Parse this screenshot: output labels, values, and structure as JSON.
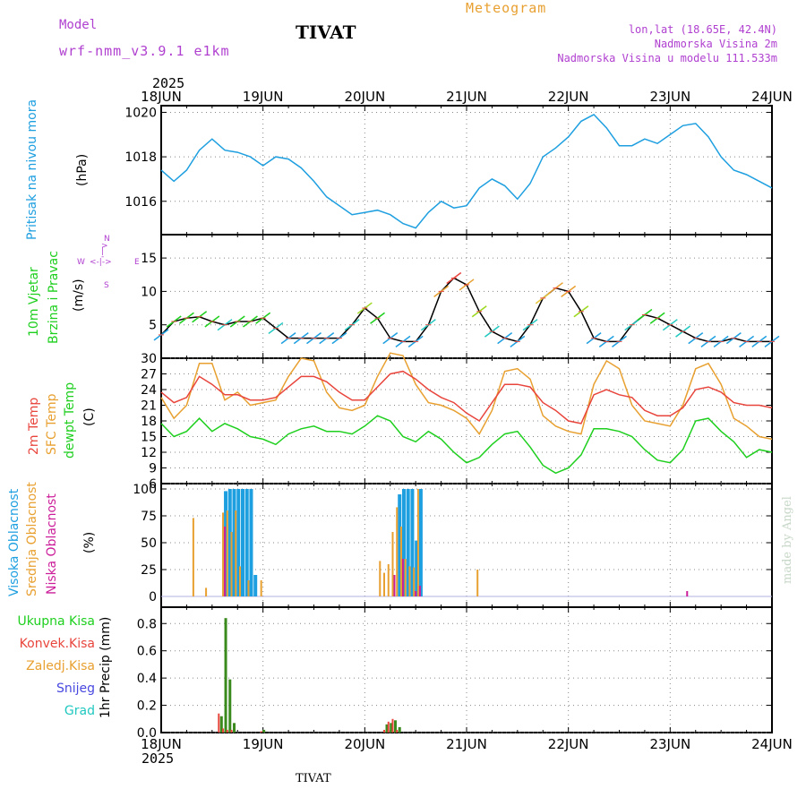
{
  "header": {
    "model_label": "Model",
    "model_name": "wrf-nmm_v3.9.1 e1km",
    "location": "TIVAT",
    "product": "Meteogram",
    "coords": "lon,lat (18.65E, 42.4N)",
    "height": "Nadmorska Visina 2m",
    "model_height": "Nadmorska Visina u modelu 111.533m",
    "footer_location": "TIVAT",
    "watermark": "made by Angel",
    "year": "2025"
  },
  "colors": {
    "cyan": "#1e9fe0",
    "red": "#e8453c",
    "orange": "#e8a030",
    "green": "#1ecf1e",
    "magenta": "#cc1e9a",
    "purple": "#b040d0",
    "blue": "#4848e0",
    "teal": "#20c8c0",
    "dark_green": "#3a8a1e"
  },
  "x_axis": {
    "ticks": [
      "18JUN",
      "19JUN",
      "20JUN",
      "21JUN",
      "22JUN",
      "23JUN",
      "24JUN"
    ]
  },
  "panels": {
    "pressure": {
      "label": "Pritisak na nivou mora",
      "unit": "(hPa)"
    },
    "wind": {
      "label1": "10m Vjetar",
      "label2": "Brzina i Pravac",
      "unit": "(m/s)",
      "compass": {
        "n": "N",
        "s": "S",
        "e": "E",
        "w": "W"
      }
    },
    "temp": {
      "label_temp": "2m Temp",
      "label_sfc": "SFC Temp",
      "label_dew": "dewpt Temp",
      "unit": "(C)"
    },
    "cloud": {
      "label_high": "Visoka Oblacnost",
      "label_mid": "Srednja Oblacnost",
      "label_low": "Niska Oblacnost",
      "unit": "(%)"
    },
    "precip": {
      "legend_total": "Ukupna Kisa",
      "legend_conv": "Konvek.Kisa",
      "legend_frozen": "Zaledj.Kisa",
      "legend_snow": "Snijeg",
      "legend_hail": "Grad",
      "unit": "1hr Precip (mm)"
    }
  },
  "chart_data": [
    {
      "type": "line",
      "title": "Pritisak na nivou mora",
      "ylabel": "(hPa)",
      "ylim": [
        1014.5,
        1020.3
      ],
      "yticks": [
        1016,
        1018,
        1020
      ],
      "x_unit": "hours from 18JUN 00",
      "x": [
        0,
        3,
        6,
        9,
        12,
        15,
        18,
        21,
        24,
        27,
        30,
        33,
        36,
        39,
        42,
        45,
        48,
        51,
        54,
        57,
        60,
        63,
        66,
        69,
        72,
        75,
        78,
        81,
        84,
        87,
        90,
        93,
        96,
        99,
        102,
        105,
        108,
        111,
        114,
        117,
        120,
        123,
        126,
        129,
        132,
        135,
        138,
        141,
        144
      ],
      "series": [
        {
          "values": [
            1017.4,
            1016.9,
            1017.4,
            1018.3,
            1018.8,
            1018.3,
            1018.2,
            1018.0,
            1017.6,
            1018.0,
            1017.9,
            1017.5,
            1016.9,
            1016.2,
            1015.8,
            1015.4,
            1015.5,
            1015.6,
            1015.4,
            1015.0,
            1014.8,
            1015.5,
            1016.0,
            1015.7,
            1015.8,
            1016.6,
            1017.0,
            1016.7,
            1016.1,
            1016.8,
            1018.0,
            1018.4,
            1018.9,
            1019.6,
            1019.9,
            1019.3,
            1018.5,
            1018.5,
            1018.8,
            1018.6,
            1019.0,
            1019.4,
            1019.5,
            1018.9,
            1018.0,
            1017.4,
            1017.2,
            1016.9,
            1016.6
          ]
        }
      ]
    },
    {
      "type": "line",
      "title": "10m Vjetar",
      "ylabel": "(m/s)",
      "ylim": [
        0,
        18.5
      ],
      "yticks": [
        5,
        10,
        15
      ],
      "x_unit": "hours from 18JUN 00",
      "x": [
        0,
        3,
        6,
        9,
        12,
        15,
        18,
        21,
        24,
        27,
        30,
        33,
        36,
        39,
        42,
        45,
        48,
        51,
        54,
        57,
        60,
        63,
        66,
        69,
        72,
        75,
        78,
        81,
        84,
        87,
        90,
        93,
        96,
        99,
        102,
        105,
        108,
        111,
        114,
        117,
        120,
        123,
        126,
        129,
        132,
        135,
        138,
        141,
        144
      ],
      "series": [
        {
          "name": "speed",
          "values": [
            3.5,
            5.5,
            6.0,
            6.2,
            5.5,
            5.0,
            5.5,
            5.5,
            6.0,
            4.5,
            3.0,
            3.0,
            3.0,
            3.0,
            3.0,
            5.0,
            7.5,
            6.0,
            3.0,
            2.5,
            2.5,
            5.0,
            10.0,
            12.0,
            11.0,
            7.0,
            4.0,
            3.0,
            2.5,
            5.0,
            9.0,
            10.5,
            10.0,
            7.0,
            3.0,
            2.5,
            2.5,
            5.0,
            6.5,
            6.0,
            5.0,
            4.0,
            3.0,
            2.5,
            2.5,
            3.0,
            2.5,
            2.5,
            2.5
          ]
        }
      ]
    },
    {
      "type": "line",
      "title": "2m Temp / SFC Temp / dewpt Temp",
      "ylabel": "(C)",
      "ylim": [
        6,
        30
      ],
      "yticks": [
        6,
        9,
        12,
        15,
        18,
        21,
        24,
        27,
        30
      ],
      "x_unit": "hours from 18JUN 00",
      "x": [
        0,
        3,
        6,
        9,
        12,
        15,
        18,
        21,
        24,
        27,
        30,
        33,
        36,
        39,
        42,
        45,
        48,
        51,
        54,
        57,
        60,
        63,
        66,
        69,
        72,
        75,
        78,
        81,
        84,
        87,
        90,
        93,
        96,
        99,
        102,
        105,
        108,
        111,
        114,
        117,
        120,
        123,
        126,
        129,
        132,
        135,
        138,
        141,
        144
      ],
      "series": [
        {
          "name": "2m Temp",
          "values": [
            23.5,
            21.5,
            22.5,
            26.5,
            25.0,
            23.0,
            23.0,
            22.0,
            22.0,
            22.5,
            24.5,
            26.5,
            26.5,
            25.5,
            23.5,
            22.0,
            22.0,
            24.5,
            27.0,
            27.5,
            26.0,
            24.0,
            22.5,
            21.5,
            19.5,
            18.0,
            21.5,
            25.0,
            25.0,
            24.5,
            21.5,
            20.0,
            18.0,
            17.5,
            23.0,
            24.0,
            23.0,
            22.5,
            20.0,
            19.0,
            19.0,
            20.5,
            24.0,
            24.5,
            23.5,
            21.5,
            21.0,
            21.0,
            20.5
          ]
        },
        {
          "name": "SFC Temp",
          "values": [
            22.5,
            18.5,
            21.0,
            29.0,
            29.0,
            22.0,
            23.5,
            21.0,
            21.5,
            22.0,
            26.5,
            30.0,
            29.5,
            23.5,
            20.5,
            20.0,
            21.0,
            26.5,
            31.0,
            30.5,
            25.0,
            21.5,
            21.0,
            20.0,
            18.5,
            15.5,
            20.0,
            27.5,
            28.0,
            26.0,
            19.0,
            17.0,
            16.0,
            15.5,
            25.0,
            29.5,
            28.0,
            21.0,
            18.0,
            17.5,
            17.0,
            21.0,
            28.0,
            29.0,
            25.0,
            18.5,
            17.0,
            15.0,
            14.5
          ]
        },
        {
          "name": "dewpt Temp",
          "values": [
            17.5,
            15.0,
            16.0,
            18.5,
            16.0,
            17.5,
            16.5,
            15.0,
            14.5,
            13.5,
            15.5,
            16.5,
            17.0,
            16.0,
            16.0,
            15.5,
            17.0,
            19.0,
            18.0,
            15.0,
            14.0,
            16.0,
            14.5,
            12.0,
            10.0,
            11.0,
            13.5,
            15.5,
            16.0,
            13.0,
            9.5,
            8.0,
            9.0,
            11.5,
            16.5,
            16.5,
            16.0,
            15.0,
            12.5,
            10.5,
            10.0,
            12.5,
            18.0,
            18.5,
            16.0,
            14.0,
            11.0,
            12.5,
            12.0
          ]
        }
      ]
    },
    {
      "type": "bar",
      "title": "Oblacnost",
      "ylabel": "(%)",
      "ylim": [
        -10,
        105
      ],
      "yticks": [
        0,
        25,
        50,
        75,
        100
      ],
      "x_unit": "hours from 18JUN 00",
      "series": [
        {
          "name": "Visoka Oblacnost",
          "x": [
            15,
            16,
            17,
            18,
            19,
            20,
            21,
            22,
            56,
            57,
            58,
            59,
            60,
            61
          ],
          "values": [
            98,
            100,
            100,
            100,
            100,
            100,
            100,
            20,
            95,
            100,
            100,
            100,
            52,
            100
          ]
        },
        {
          "name": "Srednja Oblacnost",
          "x": [
            8,
            11,
            15,
            16,
            17,
            18,
            19,
            21,
            24,
            52,
            53,
            54,
            55,
            56,
            57,
            58,
            59,
            60,
            61,
            75
          ],
          "values": [
            73,
            8,
            78,
            80,
            60,
            80,
            28,
            15,
            15,
            33,
            22,
            30,
            60,
            83,
            65,
            35,
            28,
            27,
            100,
            25
          ]
        },
        {
          "name": "Niska Oblacnost",
          "x": [
            15,
            55,
            57,
            60,
            61,
            124
          ],
          "values": [
            65,
            20,
            35,
            5,
            10,
            5
          ]
        }
      ]
    },
    {
      "type": "bar",
      "title": "1hr Precip",
      "ylabel": "1hr Precip (mm)",
      "ylim": [
        0,
        0.92
      ],
      "yticks": [
        0.0,
        0.2,
        0.4,
        0.6,
        0.8
      ],
      "x_unit": "hours from 18JUN 00",
      "series": [
        {
          "name": "Ukupna Kisa",
          "x": [
            14,
            15,
            16,
            17,
            24,
            53,
            54,
            55,
            56
          ],
          "values": [
            0.12,
            0.84,
            0.39,
            0.07,
            0.02,
            0.06,
            0.07,
            0.09,
            0.04
          ]
        },
        {
          "name": "Konvek.Kisa",
          "x": [
            14,
            15,
            16,
            17,
            24,
            53,
            54,
            55,
            56
          ],
          "values": [
            0.14,
            0.03,
            0.02,
            0.02,
            0.01,
            0.02,
            0.08,
            0.1,
            0.02
          ]
        }
      ]
    }
  ]
}
